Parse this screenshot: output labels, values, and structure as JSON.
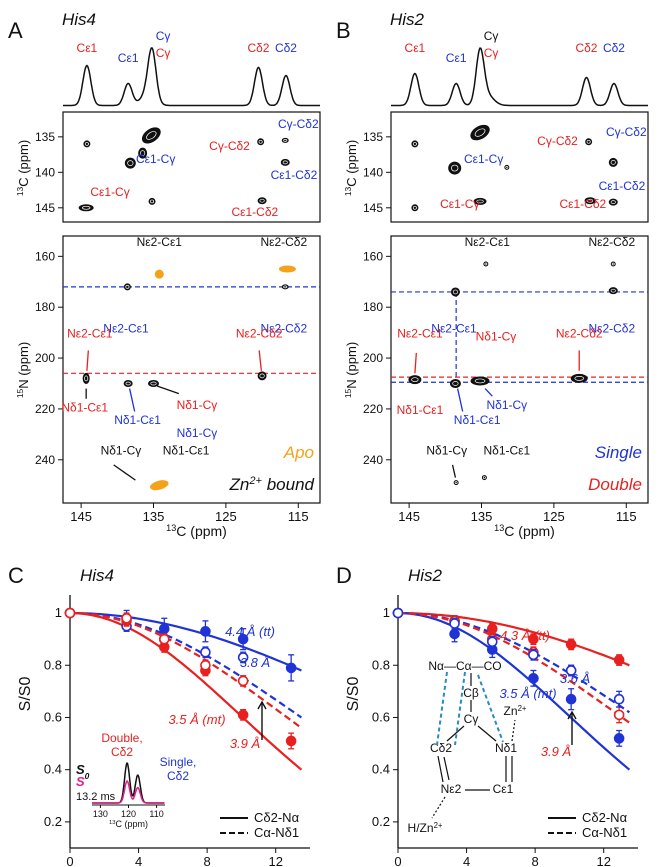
{
  "panels": {
    "A": {
      "letter": "A",
      "title": "His4",
      "spec_labels": [
        {
          "t": "Cε1",
          "c": "red"
        },
        {
          "t": "Cε1",
          "c": "blue"
        },
        {
          "t": "Cγ",
          "c": "blue"
        },
        {
          "t": "Cγ",
          "c": "red"
        },
        {
          "t": "Cδ2",
          "c": "red"
        },
        {
          "t": "Cδ2",
          "c": "blue"
        }
      ],
      "top_ylabel": "13C (ppm)",
      "top_yticks": [
        135,
        140,
        145
      ],
      "top_labels": [
        {
          "t": "Cγ-Cδ2",
          "c": "red"
        },
        {
          "t": "Cγ-Cδ2",
          "c": "blue"
        },
        {
          "t": "Cε1-Cγ",
          "c": "blue"
        },
        {
          "t": "Cε1-Cδ2",
          "c": "blue"
        },
        {
          "t": "Cε1-Cγ",
          "c": "red"
        },
        {
          "t": "Cε1-Cδ2",
          "c": "red"
        }
      ],
      "bot_ylabel": "15N (ppm)",
      "bot_yticks": [
        160,
        180,
        200,
        220,
        240
      ],
      "bot_labels": [
        {
          "t": "Nε2-Cε1",
          "c": "black"
        },
        {
          "t": "Nε2-Cδ2",
          "c": "black"
        },
        {
          "t": "Nε2-Cε1",
          "c": "blue"
        },
        {
          "t": "Nε2-Cδ2",
          "c": "blue"
        },
        {
          "t": "Nε2-Cε1",
          "c": "red"
        },
        {
          "t": "Nε2-Cδ2",
          "c": "red"
        },
        {
          "t": "Nδ1-Cε1",
          "c": "red"
        },
        {
          "t": "Nδ1-Cγ",
          "c": "red"
        },
        {
          "t": "Nδ1-Cγ",
          "c": "blue"
        },
        {
          "t": "Nδ1-Cε1",
          "c": "blue"
        },
        {
          "t": "Nδ1-Cγ",
          "c": "black"
        },
        {
          "t": "Nδ1-Cε1",
          "c": "black"
        }
      ],
      "legend1": "Apo",
      "legend2": "Zn2+ bound",
      "xlabel": "13C (ppm)",
      "xticks": [
        145,
        135,
        125,
        115
      ]
    },
    "B": {
      "letter": "B",
      "title": "His2",
      "spec_labels": [
        {
          "t": "Cε1",
          "c": "red"
        },
        {
          "t": "Cε1",
          "c": "blue"
        },
        {
          "t": "Cγ",
          "c": "black"
        },
        {
          "t": "Cγ",
          "c": "red"
        },
        {
          "t": "Cδ2",
          "c": "red"
        },
        {
          "t": "Cδ2",
          "c": "blue"
        }
      ],
      "top_ylabel": "13C (ppm)",
      "top_yticks": [
        135,
        140,
        145
      ],
      "top_labels": [
        {
          "t": "Cγ-Cδ2",
          "c": "red"
        },
        {
          "t": "Cγ-Cδ2",
          "c": "blue"
        },
        {
          "t": "Cε1-Cγ",
          "c": "blue"
        },
        {
          "t": "Cε1-Cδ2",
          "c": "blue"
        },
        {
          "t": "Cε1-Cγ",
          "c": "red"
        },
        {
          "t": "Cε1-Cδ2",
          "c": "red"
        }
      ],
      "bot_ylabel": "15N (ppm)",
      "bot_yticks": [
        160,
        180,
        200,
        220,
        240
      ],
      "bot_labels": [
        {
          "t": "Nε2-Cε1",
          "c": "black"
        },
        {
          "t": "Nε2-Cδ2",
          "c": "black"
        },
        {
          "t": "Nε2-Cε1",
          "c": "blue"
        },
        {
          "t": "Nε2-Cδ2",
          "c": "blue"
        },
        {
          "t": "Nε2-Cε1",
          "c": "red"
        },
        {
          "t": "Nδ1-Cγ",
          "c": "red"
        },
        {
          "t": "Nε2-Cδ2",
          "c": "red"
        },
        {
          "t": "Nδ1-Cε1",
          "c": "red"
        },
        {
          "t": "Nδ1-Cγ",
          "c": "blue"
        },
        {
          "t": "Nδ1-Cε1",
          "c": "blue"
        },
        {
          "t": "Nδ1-Cγ",
          "c": "black"
        },
        {
          "t": "Nδ1-Cε1",
          "c": "black"
        }
      ],
      "legend1": "Single",
      "legend2": "Double",
      "xlabel": "13C (ppm)",
      "xticks": [
        145,
        135,
        125,
        115
      ]
    }
  },
  "colors": {
    "red": "#e8201f",
    "blue": "#1f33d6",
    "orange": "#f5a21b",
    "black": "#111111",
    "pink": "#e0208c",
    "teal": "#2a8bbf"
  },
  "chart_data": [
    {
      "type": "scatter",
      "panel": "C",
      "title": "His4",
      "xlabel": "REDOR mixing time (ms)",
      "ylabel": "S/S0",
      "xlim": [
        0,
        14
      ],
      "ylim": [
        0.2,
        1.0
      ],
      "xticks": [
        0,
        4,
        8,
        12
      ],
      "yticks": [
        0.2,
        0.4,
        0.6,
        0.8,
        1
      ],
      "series": [
        {
          "name": "Single, Cδ2-Nα",
          "color": "blue",
          "filled": true,
          "x": [
            0,
            3.3,
            5.5,
            7.9,
            10.1,
            12.9
          ],
          "y": [
            1.0,
            0.98,
            0.94,
            0.93,
            0.9,
            0.79
          ],
          "err": [
            0.01,
            0.03,
            0.04,
            0.04,
            0.04,
            0.05
          ]
        },
        {
          "name": "Single, Cα-Nδ1",
          "color": "blue",
          "filled": false,
          "x": [
            0,
            3.3,
            5.5,
            7.9,
            10.1
          ],
          "y": [
            1.0,
            0.95,
            0.9,
            0.85,
            0.83
          ],
          "err": [
            0.01,
            0.02,
            0.02,
            0.02,
            0.02
          ]
        },
        {
          "name": "Double, Cδ2-Nα",
          "color": "red",
          "filled": true,
          "x": [
            0,
            3.3,
            5.5,
            7.9,
            10.1,
            12.9
          ],
          "y": [
            1.0,
            0.97,
            0.87,
            0.78,
            0.61,
            0.51
          ],
          "err": [
            0.01,
            0.02,
            0.02,
            0.02,
            0.02,
            0.03
          ]
        },
        {
          "name": "Double, Cα-Nδ1",
          "color": "red",
          "filled": false,
          "x": [
            0,
            3.3,
            5.5,
            7.9,
            10.1
          ],
          "y": [
            1.0,
            0.98,
            0.9,
            0.8,
            0.74
          ],
          "err": [
            0.01,
            0.02,
            0.02,
            0.02,
            0.02
          ]
        }
      ],
      "curves": [
        {
          "color": "blue",
          "dash": false,
          "y_end": 0.78,
          "label": "4.4 Å (tt)"
        },
        {
          "color": "blue",
          "dash": true,
          "y_end": 0.6,
          "label": "3.8 Å"
        },
        {
          "color": "red",
          "dash": false,
          "y_end": 0.4,
          "label": "3.5 Å (mt)"
        },
        {
          "color": "red",
          "dash": true,
          "y_end": 0.56,
          "label": "3.9 Å"
        }
      ],
      "legend": [
        {
          "label": "Cδ2-Nα",
          "style": "solid"
        },
        {
          "label": "Cα-Nδ1",
          "style": "dashed"
        }
      ],
      "inset": {
        "label_double": "Double,",
        "label_double2": "Cδ2",
        "label_single": "Single,",
        "label_single2": "Cδ2",
        "s0": "S0",
        "s": "S",
        "time": "13.2 ms",
        "xticks": [
          130,
          120,
          110
        ],
        "xlabel": "13C (ppm)"
      }
    },
    {
      "type": "scatter",
      "panel": "D",
      "title": "His2",
      "xlabel": "REDOR mixing time (ms)",
      "ylabel": "S/S0",
      "xlim": [
        0,
        14
      ],
      "ylim": [
        0.2,
        1.0
      ],
      "xticks": [
        0,
        4,
        8,
        12
      ],
      "yticks": [
        0.2,
        0.4,
        0.6,
        0.8,
        1
      ],
      "series": [
        {
          "name": "Double, Cδ2-Nα",
          "color": "red",
          "filled": true,
          "x": [
            0,
            3.3,
            5.5,
            7.9,
            10.1,
            12.9
          ],
          "y": [
            1.0,
            0.97,
            0.94,
            0.9,
            0.88,
            0.82
          ],
          "err": [
            0.01,
            0.02,
            0.02,
            0.02,
            0.02,
            0.02
          ]
        },
        {
          "name": "Double, Cα-Nδ1",
          "color": "red",
          "filled": false,
          "x": [
            0,
            3.3,
            5.5,
            7.9,
            10.1,
            12.9
          ],
          "y": [
            1.0,
            0.97,
            0.9,
            0.85,
            0.78,
            0.61
          ],
          "err": [
            0.01,
            0.02,
            0.02,
            0.02,
            0.02,
            0.03
          ]
        },
        {
          "name": "Single, Cδ2-Nα",
          "color": "blue",
          "filled": true,
          "x": [
            0,
            3.3,
            5.5,
            7.9,
            10.1,
            12.9
          ],
          "y": [
            1.0,
            0.92,
            0.86,
            0.75,
            0.67,
            0.52
          ],
          "err": [
            0.01,
            0.03,
            0.03,
            0.03,
            0.04,
            0.03
          ]
        },
        {
          "name": "Single, Cα-Nδ1",
          "color": "blue",
          "filled": false,
          "x": [
            0,
            3.3,
            5.5,
            7.9,
            10.1,
            12.9
          ],
          "y": [
            1.0,
            0.96,
            0.89,
            0.84,
            0.78,
            0.67
          ],
          "err": [
            0.01,
            0.02,
            0.02,
            0.02,
            0.02,
            0.03
          ]
        }
      ],
      "curves": [
        {
          "color": "red",
          "dash": false,
          "y_end": 0.8,
          "label": "4.3 Å (tt)"
        },
        {
          "color": "blue",
          "dash": true,
          "y_end": 0.62,
          "label": "3.6 Å"
        },
        {
          "color": "blue",
          "dash": false,
          "y_end": 0.4,
          "label": "3.5 Å (mt)"
        },
        {
          "color": "red",
          "dash": true,
          "y_end": 0.58,
          "label": "3.9 Å"
        }
      ],
      "legend": [
        {
          "label": "Cδ2-Nα",
          "style": "solid"
        },
        {
          "label": "Cα-Nδ1",
          "style": "dashed"
        }
      ],
      "structure": {
        "top": "Nα—Cα—CO",
        "cb": "Cβ",
        "cg": "Cγ",
        "cd2": "Cδ2",
        "nd1": "Nδ1",
        "ne2": "Nε2",
        "ce1": "Cε1",
        "zn": "Zn2+",
        "h": "H/Zn2+"
      }
    }
  ]
}
